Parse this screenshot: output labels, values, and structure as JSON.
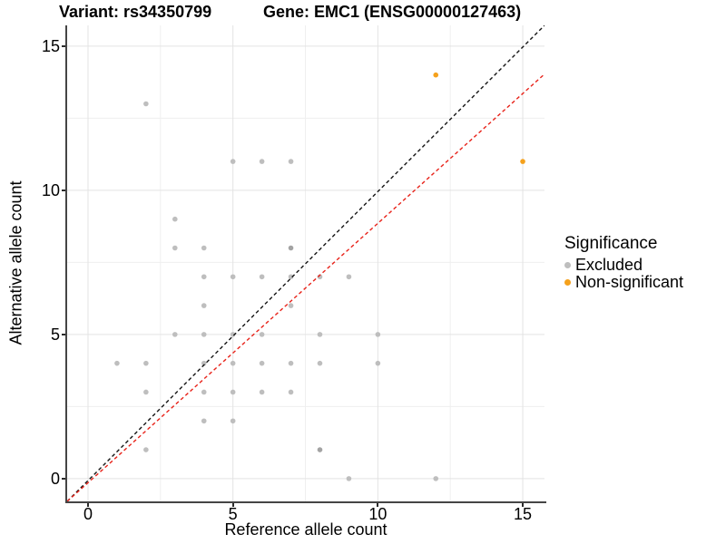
{
  "titles": {
    "variant": "Variant: rs34350799",
    "gene": "Gene: EMC1 (ENSG00000127463)"
  },
  "axes": {
    "x": {
      "label": "Reference allele count",
      "tick_labels": [
        "0",
        "5",
        "10",
        "15"
      ],
      "tick_values": [
        0,
        5,
        10,
        15
      ],
      "minor_values": [
        2.5,
        7.5,
        12.5
      ]
    },
    "y": {
      "label": "Alternative allele count",
      "tick_labels": [
        "0",
        "5",
        "10",
        "15"
      ],
      "tick_values": [
        0,
        5,
        10,
        15
      ],
      "minor_values": [
        2.5,
        7.5,
        12.5
      ]
    }
  },
  "legend": {
    "title": "Significance",
    "items": [
      {
        "label": "Excluded",
        "color": "#BEBEBE"
      },
      {
        "label": "Non-significant",
        "color": "#F5A11C"
      }
    ]
  },
  "colors": {
    "axis_line": "#454545",
    "major_grid": "#E3E3E3",
    "minor_grid": "#EFEFEF",
    "identity_line": "#141414",
    "fit_line": "#E8231A",
    "excluded_point": "#BEBEBE",
    "excluded_overplotted_point": "#A3A3A3",
    "non_significant_point": "#F5A11C"
  },
  "chart_data": {
    "type": "scatter",
    "title": "Variant: rs34350799 / Gene: EMC1 (ENSG00000127463)",
    "xlabel": "Reference allele count",
    "ylabel": "Alternative allele count",
    "xlim": [
      -0.72,
      15.75
    ],
    "ylim": [
      -0.79,
      15.72
    ],
    "grid": true,
    "legend_position": "right",
    "point_radius": 2.8,
    "series": [
      {
        "name": "Excluded",
        "color": "#BEBEBE",
        "points": [
          [
            1,
            4
          ],
          [
            2,
            1
          ],
          [
            2,
            3
          ],
          [
            2,
            4
          ],
          [
            2,
            13
          ],
          [
            3,
            5
          ],
          [
            3,
            8
          ],
          [
            3,
            9
          ],
          [
            4,
            2
          ],
          [
            4,
            3
          ],
          [
            4,
            4
          ],
          [
            4,
            5
          ],
          [
            4,
            6
          ],
          [
            4,
            7
          ],
          [
            4,
            8
          ],
          [
            5,
            2
          ],
          [
            5,
            3
          ],
          [
            5,
            4
          ],
          [
            5,
            5
          ],
          [
            5,
            7
          ],
          [
            5,
            11
          ],
          [
            6,
            3
          ],
          [
            6,
            4
          ],
          [
            6,
            5
          ],
          [
            6,
            7
          ],
          [
            6,
            11
          ],
          [
            7,
            3
          ],
          [
            7,
            4
          ],
          [
            7,
            6
          ],
          [
            7,
            7
          ],
          [
            7,
            11
          ],
          [
            8,
            4
          ],
          [
            8,
            5
          ],
          [
            8,
            7
          ],
          [
            9,
            0
          ],
          [
            9,
            7
          ],
          [
            10,
            4
          ],
          [
            10,
            5
          ],
          [
            12,
            0
          ]
        ]
      },
      {
        "name": "Excluded (overplotted)",
        "color": "#A3A3A3",
        "points": [
          [
            7,
            8
          ],
          [
            8,
            1
          ]
        ]
      },
      {
        "name": "Non-significant",
        "color": "#F5A11C",
        "points": [
          [
            12,
            14
          ],
          [
            15,
            11
          ]
        ]
      }
    ],
    "lines": [
      {
        "name": "identity-line",
        "color": "#141414",
        "dash": "4 3",
        "from": [
          -0.72,
          -0.79
        ],
        "to": [
          15.75,
          15.72
        ]
      },
      {
        "name": "fit-line",
        "color": "#E8231A",
        "dash": "4 3",
        "from": [
          -0.72,
          -0.79
        ],
        "to": [
          15.75,
          14.03
        ]
      }
    ]
  }
}
